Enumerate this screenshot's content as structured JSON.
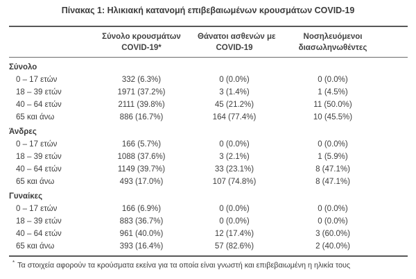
{
  "title": "Πίνακας 1: Ηλικιακή κατανομή επιβεβαιωμένων κρουσμάτων COVID-19",
  "table": {
    "columns": [
      {
        "line1": "Σύνολο κρουσμάτων",
        "line2": "COVID-19*"
      },
      {
        "line1": "Θάνατοι ασθενών με",
        "line2": "COVID-19"
      },
      {
        "line1": "Νοσηλευόμενοι",
        "line2": "διασωληνωθέντες"
      }
    ],
    "sections": [
      {
        "name": "Σύνολο",
        "rows": [
          {
            "label": "0 – 17 ετών",
            "cells": [
              "332 (6.3%)",
              "0 (0.0%)",
              "0 (0.0%)"
            ]
          },
          {
            "label": "18 – 39 ετών",
            "cells": [
              "1971 (37.2%)",
              "3 (1.4%)",
              "1 (4.5%)"
            ]
          },
          {
            "label": "40 – 64 ετών",
            "cells": [
              "2111 (39.8%)",
              "45 (21.2%)",
              "11 (50.0%)"
            ]
          },
          {
            "label": "65 και άνω",
            "cells": [
              "886 (16.7%)",
              "164 (77.4%)",
              "10 (45.5%)"
            ]
          }
        ]
      },
      {
        "name": "Άνδρες",
        "rows": [
          {
            "label": "0 – 17 ετών",
            "cells": [
              "166 (5.7%)",
              "0 (0.0%)",
              "0 (0.0%)"
            ]
          },
          {
            "label": "18 – 39 ετών",
            "cells": [
              "1088 (37.6%)",
              "3 (2.1%)",
              "1 (5.9%)"
            ]
          },
          {
            "label": "40 – 64 ετών",
            "cells": [
              "1149 (39.7%)",
              "33 (23.1%)",
              "8 (47.1%)"
            ]
          },
          {
            "label": "65 και άνω",
            "cells": [
              "493 (17.0%)",
              "107 (74.8%)",
              "8 (47.1%)"
            ]
          }
        ]
      },
      {
        "name": "Γυναίκες",
        "rows": [
          {
            "label": "0 – 17 ετών",
            "cells": [
              "166 (6.9%)",
              "0 (0.0%)",
              "0 (0.0%)"
            ]
          },
          {
            "label": "18 – 39 ετών",
            "cells": [
              "883 (36.7%)",
              "0 (0.0%)",
              "0 (0.0%)"
            ]
          },
          {
            "label": "40 – 64 ετών",
            "cells": [
              "961 (40.0%)",
              "12 (17.4%)",
              "3 (60.0%)"
            ]
          },
          {
            "label": "65 και άνω",
            "cells": [
              "393 (16.4%)",
              "57 (82.6%)",
              "2 (40.0%)"
            ]
          }
        ]
      }
    ],
    "footnote_marker": "*",
    "footnote": "Τα στοιχεία αφορούν τα κρούσματα εκείνα για τα οποία είναι γνωστή και επιβεβαιωμένη η ηλικία τους"
  },
  "colors": {
    "background": "#ffffff",
    "text": "#3e3e3e",
    "rule": "#585858"
  }
}
